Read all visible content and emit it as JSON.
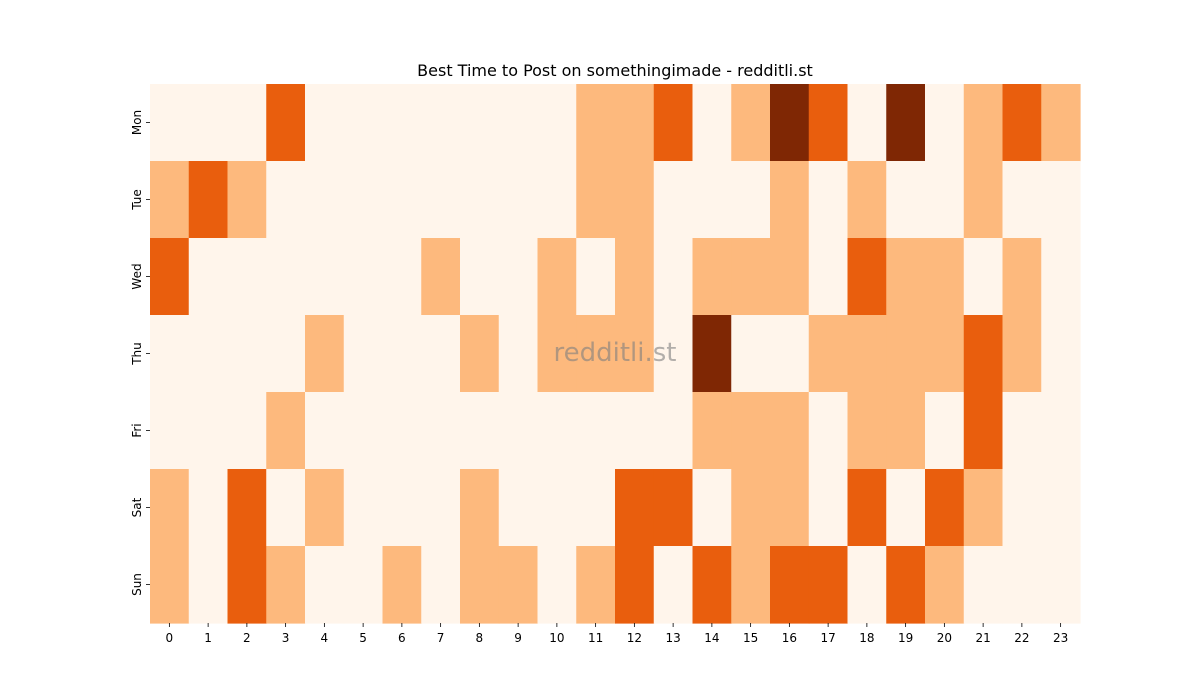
{
  "chart_data": {
    "type": "heatmap",
    "title": "Best Time to Post on somethingimade - redditli.st",
    "watermark": "redditli.st",
    "x": [
      "0",
      "1",
      "2",
      "3",
      "4",
      "5",
      "6",
      "7",
      "8",
      "9",
      "10",
      "11",
      "12",
      "13",
      "14",
      "15",
      "16",
      "17",
      "18",
      "19",
      "20",
      "21",
      "22",
      "23"
    ],
    "y": [
      "Mon",
      "Tue",
      "Wed",
      "Thu",
      "Fri",
      "Sat",
      "Sun"
    ],
    "values": [
      [
        0,
        0,
        0,
        2,
        0,
        0,
        0,
        0,
        0,
        0,
        0,
        1,
        1,
        2,
        0,
        1,
        3,
        2,
        0,
        3,
        0,
        1,
        2,
        1
      ],
      [
        1,
        2,
        1,
        0,
        0,
        0,
        0,
        0,
        0,
        0,
        0,
        1,
        1,
        0,
        0,
        0,
        1,
        0,
        1,
        0,
        0,
        1,
        0,
        0
      ],
      [
        2,
        0,
        0,
        0,
        0,
        0,
        0,
        1,
        0,
        0,
        1,
        0,
        1,
        0,
        1,
        1,
        1,
        0,
        2,
        1,
        1,
        0,
        1,
        0
      ],
      [
        0,
        0,
        0,
        0,
        1,
        0,
        0,
        0,
        1,
        0,
        1,
        1,
        1,
        0,
        3,
        0,
        0,
        1,
        1,
        1,
        1,
        2,
        1,
        0
      ],
      [
        0,
        0,
        0,
        1,
        0,
        0,
        0,
        0,
        0,
        0,
        0,
        0,
        0,
        0,
        1,
        1,
        1,
        0,
        1,
        1,
        0,
        2,
        0,
        0
      ],
      [
        1,
        0,
        2,
        0,
        1,
        0,
        0,
        0,
        1,
        0,
        0,
        0,
        2,
        2,
        0,
        1,
        1,
        0,
        2,
        0,
        2,
        1,
        0,
        0
      ],
      [
        1,
        0,
        2,
        1,
        0,
        0,
        1,
        0,
        1,
        1,
        0,
        1,
        2,
        0,
        2,
        1,
        2,
        2,
        0,
        2,
        1,
        0,
        0,
        0
      ]
    ],
    "colors": [
      "#fff5eb",
      "#fdb97d",
      "#e95e0d",
      "#7f2704"
    ],
    "colorbar": false,
    "grid": false
  }
}
